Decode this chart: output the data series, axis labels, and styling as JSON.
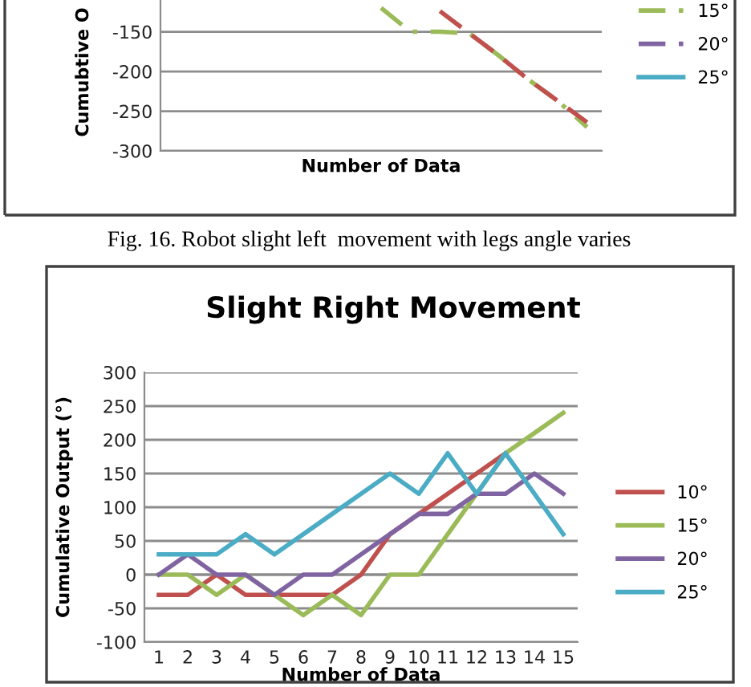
{
  "chart_data": [
    {
      "type": "line",
      "ylabel": "Cumubtive O",
      "xlabel": "Number of Data",
      "categories": [
        null,
        null,
        null,
        null,
        null,
        null,
        null,
        null,
        null,
        null,
        null,
        null,
        null,
        null,
        null
      ],
      "series": [
        {
          "name": "15°",
          "color": "#9bbb59",
          "line_style": "dashdot",
          "values": [
            null,
            null,
            null,
            null,
            null,
            null,
            null,
            -120,
            -150,
            -150,
            -152,
            -180,
            -210,
            -237,
            -270
          ]
        },
        {
          "name": "20°",
          "color": "#8064a2",
          "line_style": "dashed",
          "values": [
            null,
            null,
            null,
            null,
            null,
            null,
            null,
            null,
            null,
            null,
            null,
            null,
            null,
            null,
            null
          ]
        },
        {
          "name": "25°",
          "color": "#4bacc6",
          "line_style": "solid",
          "values": [
            null,
            null,
            null,
            null,
            null,
            null,
            null,
            null,
            null,
            null,
            null,
            null,
            null,
            null,
            null
          ]
        },
        {
          "color": "#c0504d",
          "line_style": "dashed",
          "values": [
            null,
            null,
            null,
            null,
            null,
            null,
            null,
            null,
            null,
            -124,
            -152,
            -180,
            -210,
            -237,
            -264
          ]
        }
      ],
      "ylim": [
        -300,
        -110
      ],
      "yticks": [
        -300,
        -250,
        -200,
        -150
      ],
      "grid": "y",
      "legend": "right",
      "tick_labels": "y",
      "annotations": [
        "Fig. 16. Robot slight left  movement with legs angle varies"
      ]
    },
    {
      "type": "line",
      "title": "Slight Right Movement",
      "ylabel": "Cumulative Output (°)",
      "xlabel": "Number of Data",
      "categories": [
        "1",
        "2",
        "3",
        "4",
        "5",
        "6",
        "7",
        "8",
        "9",
        "10",
        "11",
        "12",
        "13",
        "14",
        "15"
      ],
      "series": [
        {
          "name": "10°",
          "color": "#c0504d",
          "values": [
            -30,
            -30,
            0,
            -30,
            -30,
            -30,
            -30,
            0,
            60,
            90,
            120,
            150,
            180,
            null,
            null
          ]
        },
        {
          "name": "15°",
          "color": "#9bbb59",
          "values": [
            0,
            0,
            -30,
            0,
            -30,
            -60,
            -30,
            -60,
            0,
            0,
            60,
            120,
            180,
            210,
            240
          ]
        },
        {
          "name": "20°",
          "color": "#8064a2",
          "values": [
            0,
            30,
            0,
            0,
            -30,
            0,
            0,
            30,
            60,
            90,
            90,
            120,
            120,
            150,
            120
          ]
        },
        {
          "name": "25°",
          "color": "#4bacc6",
          "values": [
            30,
            30,
            30,
            60,
            30,
            60,
            90,
            120,
            150,
            120,
            180,
            120,
            180,
            120,
            60
          ]
        }
      ],
      "ylim": [
        -100,
        300
      ],
      "yticks": [
        -100,
        -50,
        0,
        50,
        100,
        150,
        200,
        250,
        300
      ],
      "grid": "y",
      "legend": "right"
    }
  ]
}
